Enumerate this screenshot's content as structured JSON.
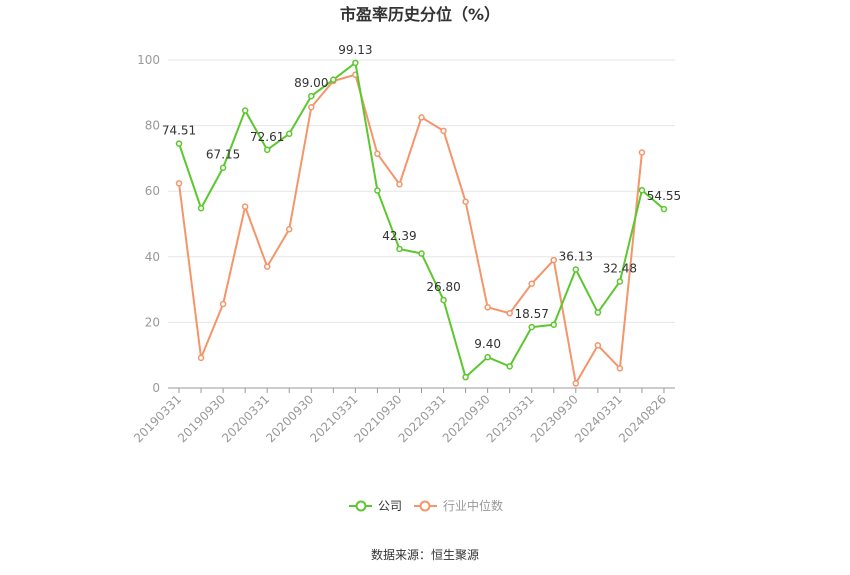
{
  "chart_data": {
    "type": "line",
    "title": "市盈率历史分位（%）",
    "source": "数据来源：恒生聚源",
    "x": [
      "20190331",
      "20190630",
      "20190930",
      "20191231",
      "20200331",
      "20200630",
      "20200930",
      "20201231",
      "20210331",
      "20210630",
      "20210930",
      "20211231",
      "20220331",
      "20220630",
      "20220930",
      "20221231",
      "20230331",
      "20230630",
      "20230930",
      "20231231",
      "20240331",
      "20240630",
      "20240826"
    ],
    "x_tick_labels": [
      "20190331",
      "20190930",
      "20200331",
      "20200930",
      "20210331",
      "20210930",
      "20220331",
      "20220930",
      "20230331",
      "20230930",
      "20240331",
      "20240826"
    ],
    "ylim": [
      0,
      100
    ],
    "yticks": [
      0,
      20,
      40,
      60,
      80,
      100
    ],
    "grid": true,
    "legend_position": "bottom",
    "series": [
      {
        "name": "公司",
        "color": "#5cc72f",
        "values": [
          74.51,
          54.8,
          67.15,
          84.6,
          72.61,
          77.5,
          89.0,
          94.0,
          99.13,
          60.2,
          42.39,
          41.0,
          26.8,
          3.3,
          9.4,
          6.6,
          18.57,
          19.3,
          36.13,
          23.0,
          32.48,
          60.3,
          54.55
        ],
        "data_labels": [
          {
            "index": 0,
            "text": "74.51"
          },
          {
            "index": 2,
            "text": "67.15"
          },
          {
            "index": 4,
            "text": "72.61"
          },
          {
            "index": 6,
            "text": "89.00"
          },
          {
            "index": 8,
            "text": "99.13"
          },
          {
            "index": 10,
            "text": "42.39"
          },
          {
            "index": 12,
            "text": "26.80"
          },
          {
            "index": 14,
            "text": "9.40"
          },
          {
            "index": 16,
            "text": "18.57"
          },
          {
            "index": 18,
            "text": "36.13"
          },
          {
            "index": 20,
            "text": "32.48"
          },
          {
            "index": 22,
            "text": "54.55"
          }
        ]
      },
      {
        "name": "行业中位数",
        "color": "#f4956a",
        "values": [
          62.4,
          9.2,
          25.6,
          55.3,
          37.0,
          48.4,
          85.6,
          93.6,
          95.5,
          71.4,
          62.1,
          82.5,
          78.4,
          56.8,
          24.6,
          22.8,
          31.8,
          39.0,
          1.4,
          13.0,
          6.0,
          71.8,
          null
        ]
      }
    ]
  }
}
